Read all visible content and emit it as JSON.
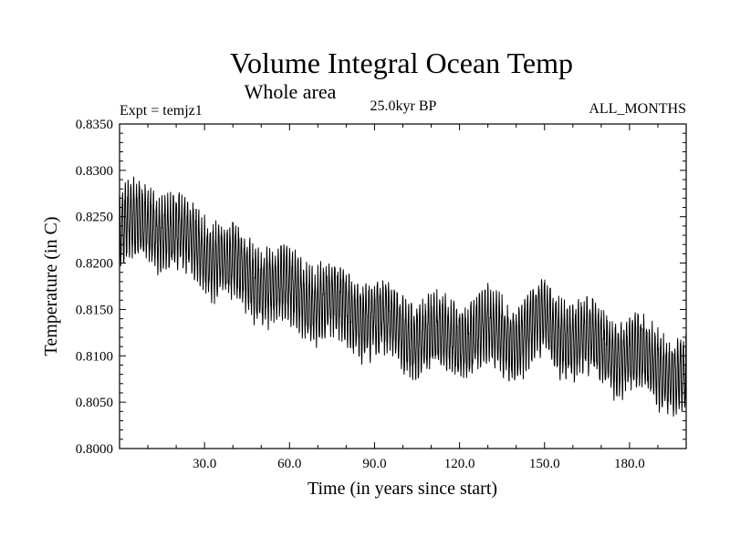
{
  "chart_data": {
    "type": "line",
    "title": "Volume Integral Ocean Temp",
    "subtitle": "Whole area",
    "expt_label": "Expt = temjz1",
    "period_label": "25.0kyr BP",
    "months_label": "ALL_MONTHS",
    "xlabel": "Time (in years since start)",
    "ylabel": "Temperature (in C)",
    "xlim": [
      0,
      200
    ],
    "ylim": [
      0.8,
      0.835
    ],
    "xticks": [
      30,
      60,
      90,
      120,
      150,
      180
    ],
    "xtick_labels": [
      "30.0",
      "60.0",
      "90.0",
      "120.0",
      "150.0",
      "180.0"
    ],
    "yticks": [
      0.8,
      0.805,
      0.81,
      0.815,
      0.82,
      0.825,
      0.83,
      0.835
    ],
    "ytick_labels": [
      "0.8000",
      "0.8050",
      "0.8100",
      "0.8150",
      "0.8200",
      "0.8250",
      "0.8300",
      "0.8350"
    ],
    "line_color": "#000000",
    "grid": false,
    "series": [
      {
        "name": "Volume Integral Ocean Temp",
        "sampling": "monthly",
        "seasonal_amplitude": 0.0035,
        "note": "monthly series with annual cycle; listed values are the annual-mean envelope center",
        "x": [
          0,
          10,
          20,
          30,
          40,
          50,
          60,
          70,
          80,
          90,
          100,
          110,
          120,
          130,
          140,
          150,
          160,
          170,
          180,
          190,
          200
        ],
        "y": [
          0.8235,
          0.8245,
          0.823,
          0.8215,
          0.8195,
          0.818,
          0.817,
          0.816,
          0.815,
          0.814,
          0.8125,
          0.812,
          0.812,
          0.8125,
          0.812,
          0.8135,
          0.812,
          0.811,
          0.81,
          0.809,
          0.8075
        ]
      }
    ]
  }
}
